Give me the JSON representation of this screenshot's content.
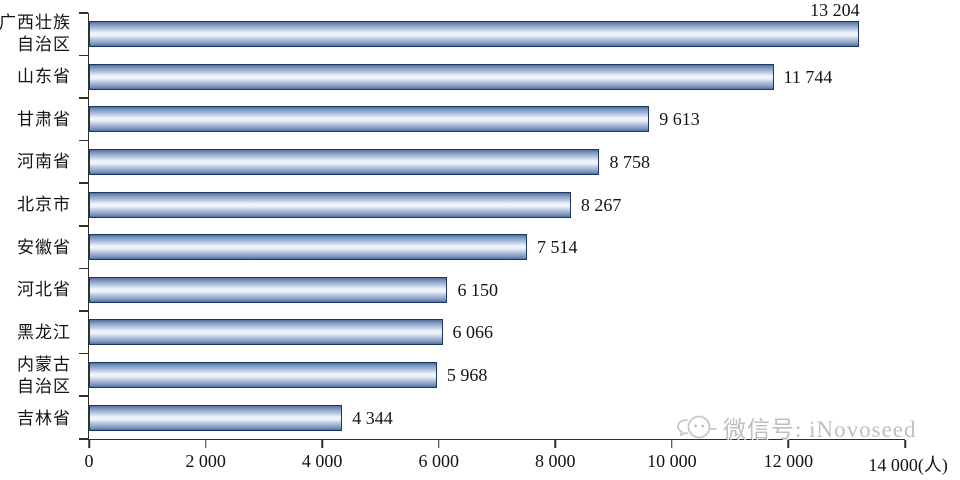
{
  "chart_data": {
    "type": "bar",
    "orientation": "horizontal",
    "title": "",
    "xlabel": "",
    "ylabel": "",
    "unit": "人",
    "grid": false,
    "legend": null,
    "xlim": [
      0,
      14000
    ],
    "categories": [
      "广西壮族自治区",
      "山东省",
      "甘肃省",
      "河南省",
      "北京市",
      "安徽省",
      "河北省",
      "黑龙江",
      "内蒙古自治区",
      "吉林省"
    ],
    "category_lines": [
      [
        "广西壮族",
        "自治区"
      ],
      [
        "山东省"
      ],
      [
        "甘肃省"
      ],
      [
        "河南省"
      ],
      [
        "北京市"
      ],
      [
        "安徽省"
      ],
      [
        "河北省"
      ],
      [
        "黑龙江"
      ],
      [
        "内蒙古",
        "自治区"
      ],
      [
        "吉林省"
      ]
    ],
    "values": [
      13204,
      11744,
      9613,
      8758,
      8267,
      7514,
      6150,
      6066,
      5968,
      4344
    ],
    "value_labels": [
      "13 204",
      "11 744",
      "9 613",
      "8 758",
      "8 267",
      "7 514",
      "6 150",
      "6 066",
      "5 968",
      "4 344"
    ],
    "x_ticks": [
      0,
      2000,
      4000,
      6000,
      8000,
      10000,
      12000,
      14000
    ],
    "x_tick_labels": [
      "0",
      "2 000",
      "4 000",
      "6 000",
      "8 000",
      "10 000",
      "12 000",
      "14 000(人)"
    ],
    "bar_colors": {
      "border": "#1b3764",
      "body_dark": "#516e9e",
      "body_mid": "#7b94bf",
      "body_light": "#eef3fa"
    },
    "axis_color": "#2e2e2e",
    "text_color": "#141414"
  },
  "watermark": {
    "icon": "chat-bubble-icon",
    "text": "微信号: iNovoseed",
    "color": "#b4b4b4"
  }
}
